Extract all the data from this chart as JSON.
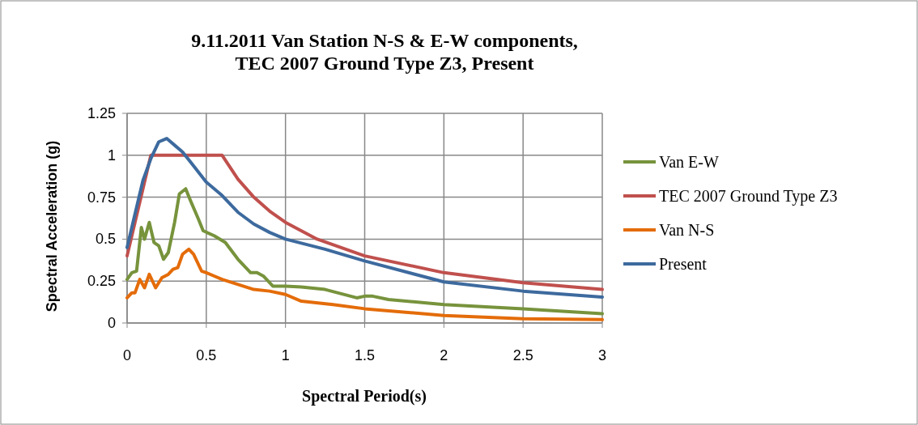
{
  "chart_data": {
    "type": "line",
    "title": "9.11.2011 Van Station N-S & E-W components,\nTEC 2007 Ground Type Z3, Present",
    "xlabel": "Spectral Period(s)",
    "ylabel": "Spectral Acceleration (g)",
    "xlim": [
      0,
      3
    ],
    "xticks": [
      0,
      0.5,
      1,
      1.5,
      2,
      2.5,
      3
    ],
    "ylim": [
      0,
      1.25
    ],
    "yticks": [
      0,
      0.25,
      0.5,
      0.75,
      1,
      1.25
    ],
    "grid": true,
    "legend": "right",
    "marker": "none",
    "line_style": "solid",
    "series": [
      {
        "name": "Van E-W",
        "color": "#77933c",
        "x": [
          0,
          0.03,
          0.06,
          0.09,
          0.11,
          0.14,
          0.17,
          0.2,
          0.23,
          0.26,
          0.3,
          0.33,
          0.37,
          0.4,
          0.45,
          0.48,
          0.55,
          0.62,
          0.7,
          0.78,
          0.82,
          0.86,
          0.92,
          1,
          1.1,
          1.25,
          1.45,
          1.5,
          1.55,
          1.65,
          2,
          2.5,
          3
        ],
        "values": [
          0.26,
          0.3,
          0.31,
          0.57,
          0.5,
          0.6,
          0.48,
          0.46,
          0.38,
          0.42,
          0.6,
          0.77,
          0.8,
          0.73,
          0.62,
          0.55,
          0.52,
          0.48,
          0.38,
          0.3,
          0.3,
          0.28,
          0.22,
          0.22,
          0.215,
          0.2,
          0.15,
          0.16,
          0.16,
          0.14,
          0.11,
          0.085,
          0.055
        ]
      },
      {
        "name": "TEC 2007 Ground Type Z3",
        "color": "#c0504d",
        "x": [
          0,
          0.15,
          0.6,
          0.7,
          0.8,
          0.9,
          1,
          1.2,
          1.5,
          2,
          2.5,
          3
        ],
        "values": [
          0.4,
          1,
          1,
          0.857,
          0.75,
          0.667,
          0.6,
          0.5,
          0.4,
          0.3,
          0.24,
          0.2
        ]
      },
      {
        "name": "Van N-S",
        "color": "#e46c0a",
        "x": [
          0,
          0.03,
          0.05,
          0.08,
          0.11,
          0.14,
          0.18,
          0.22,
          0.26,
          0.29,
          0.32,
          0.35,
          0.39,
          0.42,
          0.47,
          0.5,
          0.55,
          0.6,
          0.8,
          0.9,
          1,
          1.1,
          1.3,
          1.5,
          2,
          2.5,
          3
        ],
        "values": [
          0.15,
          0.18,
          0.18,
          0.26,
          0.21,
          0.29,
          0.21,
          0.27,
          0.29,
          0.32,
          0.33,
          0.41,
          0.44,
          0.41,
          0.31,
          0.3,
          0.28,
          0.26,
          0.2,
          0.19,
          0.17,
          0.13,
          0.11,
          0.085,
          0.045,
          0.025,
          0.02
        ]
      },
      {
        "name": "Present",
        "color": "#3d6a9e",
        "x": [
          0,
          0.05,
          0.1,
          0.15,
          0.2,
          0.25,
          0.3,
          0.35,
          0.4,
          0.5,
          0.6,
          0.7,
          0.8,
          0.9,
          1,
          1.25,
          1.5,
          2,
          2.5,
          3
        ],
        "values": [
          0.45,
          0.65,
          0.85,
          0.98,
          1.08,
          1.1,
          1.06,
          1.02,
          0.96,
          0.84,
          0.76,
          0.66,
          0.59,
          0.54,
          0.5,
          0.44,
          0.37,
          0.245,
          0.19,
          0.155
        ]
      }
    ]
  }
}
